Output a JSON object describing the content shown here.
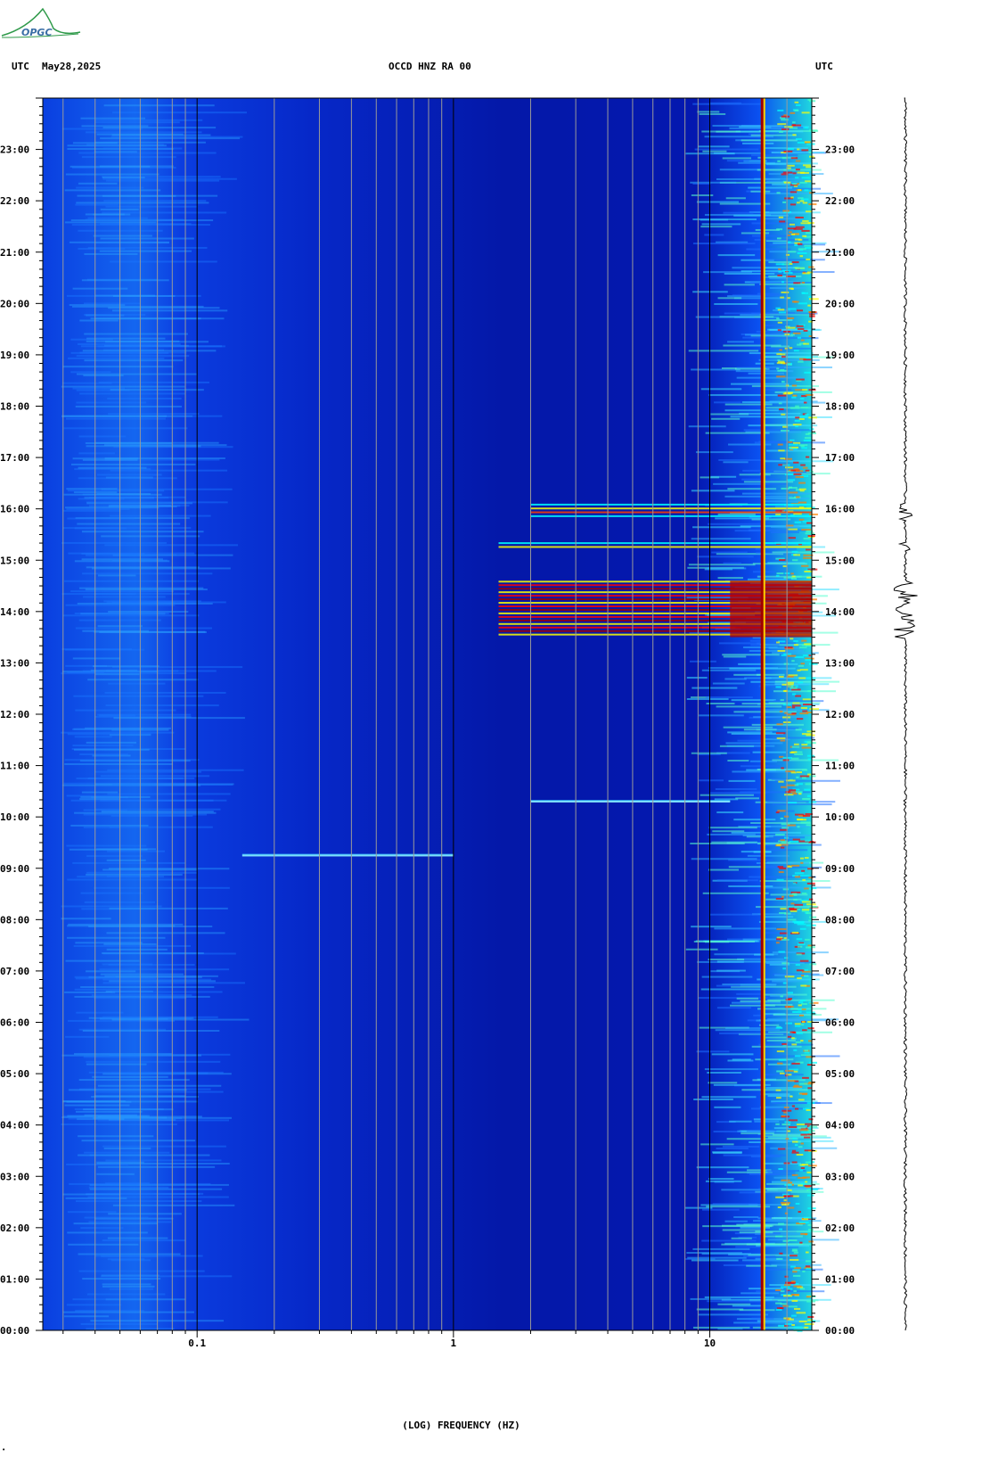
{
  "header": {
    "left_tz": "UTC",
    "date": "May28,2025",
    "station": "OCCD HNZ RA 00",
    "right_tz": "UTC"
  },
  "logo": {
    "text": "OPGC"
  },
  "chart_data": {
    "type": "heatmap",
    "title": "OCCD HNZ RA 00",
    "xlabel": "(LOG) FREQUENCY (HZ)",
    "ylabel": "",
    "x_scale": "log",
    "xlim": [
      0.025,
      25
    ],
    "x_ticks": [
      {
        "value": 0.1,
        "label": "0.1"
      },
      {
        "value": 1,
        "label": "1"
      },
      {
        "value": 10,
        "label": "10"
      }
    ],
    "ylim": [
      0,
      24
    ],
    "y_ticks": [
      {
        "value": 0,
        "label": "00:00"
      },
      {
        "value": 1,
        "label": "01:00"
      },
      {
        "value": 2,
        "label": "02:00"
      },
      {
        "value": 3,
        "label": "03:00"
      },
      {
        "value": 4,
        "label": "04:00"
      },
      {
        "value": 5,
        "label": "05:00"
      },
      {
        "value": 6,
        "label": "06:00"
      },
      {
        "value": 7,
        "label": "07:00"
      },
      {
        "value": 8,
        "label": "08:00"
      },
      {
        "value": 9,
        "label": "09:00"
      },
      {
        "value": 10,
        "label": "10:00"
      },
      {
        "value": 11,
        "label": "11:00"
      },
      {
        "value": 12,
        "label": "12:00"
      },
      {
        "value": 13,
        "label": "13:00"
      },
      {
        "value": 14,
        "label": "14:00"
      },
      {
        "value": 15,
        "label": "15:00"
      },
      {
        "value": 16,
        "label": "16:00"
      },
      {
        "value": 17,
        "label": "17:00"
      },
      {
        "value": 18,
        "label": "18:00"
      },
      {
        "value": 19,
        "label": "19:00"
      },
      {
        "value": 20,
        "label": "20:00"
      },
      {
        "value": 21,
        "label": "21:00"
      },
      {
        "value": 22,
        "label": "22:00"
      },
      {
        "value": 23,
        "label": "23:00"
      }
    ],
    "colormap": [
      "#000080",
      "#0000ff",
      "#00ffff",
      "#ffff00",
      "#ff0000",
      "#800000"
    ],
    "events": [
      {
        "start_hour": 13.5,
        "end_hour": 14.6,
        "fmin": 1.5,
        "fmax": 25,
        "intensity": "strong"
      },
      {
        "start_hour": 15.8,
        "end_hour": 16.1,
        "fmin": 2.0,
        "fmax": 25,
        "intensity": "medium"
      },
      {
        "start_hour": 15.2,
        "end_hour": 15.35,
        "fmin": 1.5,
        "fmax": 25,
        "intensity": "medium"
      },
      {
        "start_hour": 10.3,
        "end_hour": 10.33,
        "fmin": 2.0,
        "fmax": 12,
        "intensity": "weak"
      },
      {
        "start_hour": 9.25,
        "end_hour": 9.28,
        "fmin": 0.15,
        "fmax": 1.0,
        "intensity": "weak"
      }
    ],
    "persistent_line_hz": 16,
    "grid": true
  }
}
